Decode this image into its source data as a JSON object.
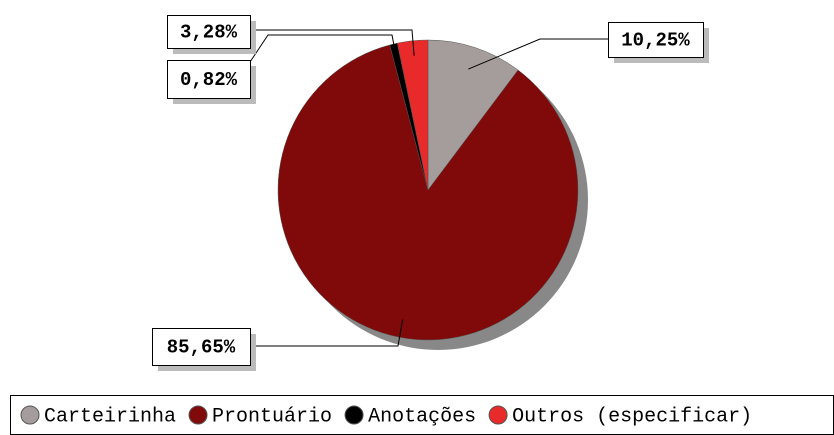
{
  "chart_data": {
    "type": "pie",
    "categories": [
      "Carteirinha",
      "Prontuário",
      "Anotações",
      "Outros (especificar)"
    ],
    "values": [
      10.25,
      85.65,
      0.82,
      3.28
    ],
    "value_labels": [
      "10,25%",
      "85,65%",
      "0,82%",
      "3,28%"
    ],
    "colors": [
      "#a59d9b",
      "#800a0a",
      "#000000",
      "#e82a2a"
    ]
  }
}
